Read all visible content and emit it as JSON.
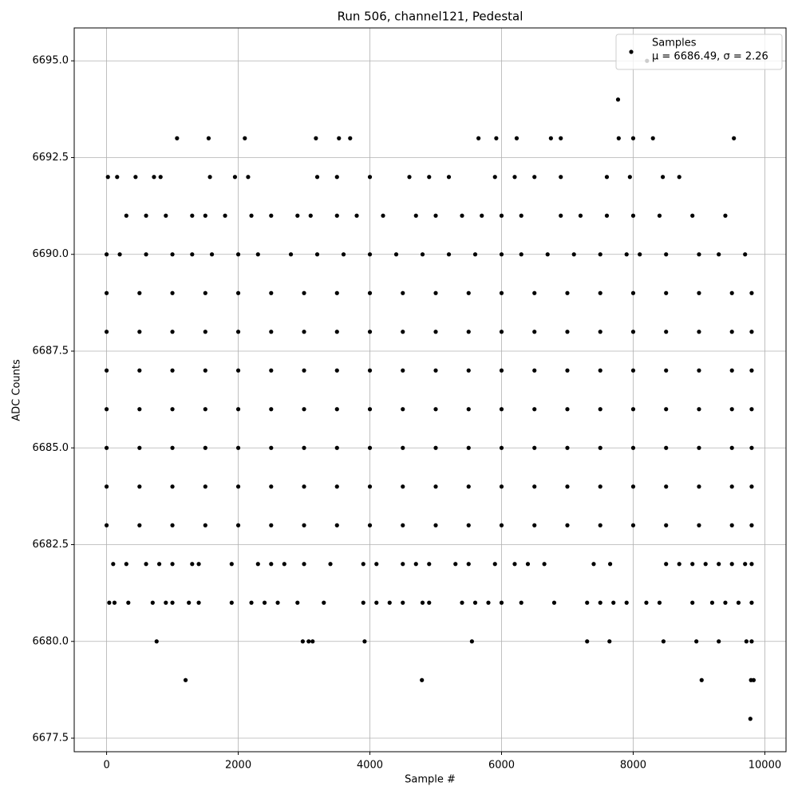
{
  "chart_data": {
    "type": "scatter",
    "title": "Run 506, channel121, Pedestal",
    "x_label": "Sample #",
    "y_label": "ADC Counts",
    "legend_position": "upper right",
    "grid": true,
    "xlim": [
      -492,
      10322
    ],
    "ylim": [
      6677.15,
      6695.85
    ],
    "xticks": [
      0,
      2000,
      4000,
      6000,
      8000,
      10000
    ],
    "yticks": [
      6677.5,
      {
        "value": 6680,
        "label": "6680.0"
      },
      6682.5,
      {
        "value": 6685,
        "label": "6685.0"
      },
      6687.5,
      {
        "value": 6690,
        "label": "6690.0"
      },
      6692.5,
      {
        "value": 6695,
        "label": "6695.0"
      }
    ],
    "series": [
      {
        "name": "Samples",
        "stats_label": "μ = 6686.49, σ = 2.26",
        "color": "#000000",
        "x": [
          0,
          500,
          1000,
          1500,
          2000,
          2500,
          3000,
          3500,
          4000,
          4500,
          5000,
          5500,
          6000,
          6500,
          7000,
          7500,
          8000,
          8500,
          9000,
          9500,
          9800,
          0,
          500,
          1000,
          1500,
          2000,
          2500,
          3000,
          3500,
          4000,
          4500,
          5000,
          5500,
          6000,
          6500,
          7000,
          7500,
          8000,
          8500,
          9000,
          9500,
          9800,
          0,
          500,
          1000,
          1500,
          2000,
          2500,
          3000,
          3500,
          4000,
          4500,
          5000,
          5500,
          6000,
          6500,
          7000,
          7500,
          8000,
          8500,
          9000,
          9500,
          9800,
          0,
          500,
          1000,
          1500,
          2000,
          2500,
          3000,
          3500,
          4000,
          4500,
          5000,
          5500,
          6000,
          6500,
          7000,
          7500,
          8000,
          8500,
          9000,
          9500,
          9800,
          0,
          500,
          1000,
          1500,
          2000,
          2500,
          3000,
          3500,
          4000,
          4500,
          5000,
          5500,
          6000,
          6500,
          7000,
          7500,
          8000,
          8500,
          9000,
          9500,
          9800,
          0,
          500,
          1000,
          1500,
          2000,
          2500,
          3000,
          3500,
          4000,
          4500,
          5000,
          5500,
          6000,
          6500,
          7000,
          7500,
          8000,
          8500,
          9000,
          9500,
          9800,
          0,
          500,
          1000,
          1500,
          2000,
          2500,
          3000,
          3500,
          4000,
          4500,
          5000,
          5500,
          6000,
          6500,
          7000,
          7500,
          8000,
          8500,
          9000,
          9500,
          9800,
          0,
          200,
          600,
          1000,
          1300,
          1600,
          2000,
          2300,
          2800,
          3200,
          3600,
          4000,
          4400,
          4800,
          5200,
          5600,
          6000,
          6300,
          6700,
          7100,
          7500,
          7900,
          8100,
          8500,
          9000,
          9300,
          9700,
          300,
          600,
          900,
          1300,
          1500,
          1800,
          2200,
          2500,
          2900,
          3100,
          3500,
          3800,
          4200,
          4700,
          5000,
          5400,
          5700,
          6000,
          6300,
          6900,
          7200,
          7600,
          8000,
          8400,
          8900,
          9400,
          20,
          160,
          440,
          720,
          820,
          1570,
          1950,
          2150,
          3200,
          3500,
          4000,
          4600,
          4900,
          5200,
          5900,
          6200,
          6500,
          6900,
          7600,
          7950,
          8450,
          8700,
          1070,
          1550,
          2100,
          3180,
          3530,
          3700,
          5650,
          5920,
          6230,
          6750,
          6900,
          7780,
          8000,
          8300,
          9530,
          7770,
          8210,
          100,
          300,
          600,
          800,
          1000,
          1300,
          1400,
          1900,
          2300,
          2500,
          2700,
          3000,
          3400,
          3900,
          4100,
          4500,
          4700,
          4900,
          5300,
          5500,
          5900,
          6200,
          6400,
          6650,
          7400,
          7650,
          8500,
          8700,
          8900,
          9100,
          9300,
          9500,
          9700,
          9800,
          40,
          120,
          330,
          700,
          900,
          1000,
          1250,
          1400,
          1900,
          2200,
          2400,
          2600,
          2900,
          3300,
          3900,
          4100,
          4300,
          4500,
          4800,
          4900,
          5400,
          5600,
          5800,
          6000,
          6300,
          6800,
          7300,
          7500,
          7700,
          7900,
          8200,
          8400,
          8900,
          9200,
          9400,
          9600,
          9800,
          760,
          2980,
          3070,
          3130,
          3920,
          5550,
          7300,
          7640,
          8460,
          8960,
          9300,
          9720,
          9800,
          1200,
          4790,
          9040,
          9790,
          9830,
          9780
        ],
        "y": [
          6683,
          6683,
          6683,
          6683,
          6683,
          6683,
          6683,
          6683,
          6683,
          6683,
          6683,
          6683,
          6683,
          6683,
          6683,
          6683,
          6683,
          6683,
          6683,
          6683,
          6683,
          6684,
          6684,
          6684,
          6684,
          6684,
          6684,
          6684,
          6684,
          6684,
          6684,
          6684,
          6684,
          6684,
          6684,
          6684,
          6684,
          6684,
          6684,
          6684,
          6684,
          6684,
          6685,
          6685,
          6685,
          6685,
          6685,
          6685,
          6685,
          6685,
          6685,
          6685,
          6685,
          6685,
          6685,
          6685,
          6685,
          6685,
          6685,
          6685,
          6685,
          6685,
          6685,
          6686,
          6686,
          6686,
          6686,
          6686,
          6686,
          6686,
          6686,
          6686,
          6686,
          6686,
          6686,
          6686,
          6686,
          6686,
          6686,
          6686,
          6686,
          6686,
          6686,
          6686,
          6687,
          6687,
          6687,
          6687,
          6687,
          6687,
          6687,
          6687,
          6687,
          6687,
          6687,
          6687,
          6687,
          6687,
          6687,
          6687,
          6687,
          6687,
          6687,
          6687,
          6687,
          6688,
          6688,
          6688,
          6688,
          6688,
          6688,
          6688,
          6688,
          6688,
          6688,
          6688,
          6688,
          6688,
          6688,
          6688,
          6688,
          6688,
          6688,
          6688,
          6688,
          6688,
          6689,
          6689,
          6689,
          6689,
          6689,
          6689,
          6689,
          6689,
          6689,
          6689,
          6689,
          6689,
          6689,
          6689,
          6689,
          6689,
          6689,
          6689,
          6689,
          6689,
          6689,
          6690,
          6690,
          6690,
          6690,
          6690,
          6690,
          6690,
          6690,
          6690,
          6690,
          6690,
          6690,
          6690,
          6690,
          6690,
          6690,
          6690,
          6690,
          6690,
          6690,
          6690,
          6690,
          6690,
          6690,
          6690,
          6690,
          6690,
          6691,
          6691,
          6691,
          6691,
          6691,
          6691,
          6691,
          6691,
          6691,
          6691,
          6691,
          6691,
          6691,
          6691,
          6691,
          6691,
          6691,
          6691,
          6691,
          6691,
          6691,
          6691,
          6691,
          6691,
          6691,
          6691,
          6692,
          6692,
          6692,
          6692,
          6692,
          6692,
          6692,
          6692,
          6692,
          6692,
          6692,
          6692,
          6692,
          6692,
          6692,
          6692,
          6692,
          6692,
          6692,
          6692,
          6692,
          6692,
          6693,
          6693,
          6693,
          6693,
          6693,
          6693,
          6693,
          6693,
          6693,
          6693,
          6693,
          6693,
          6693,
          6693,
          6693,
          6694,
          6695,
          6682,
          6682,
          6682,
          6682,
          6682,
          6682,
          6682,
          6682,
          6682,
          6682,
          6682,
          6682,
          6682,
          6682,
          6682,
          6682,
          6682,
          6682,
          6682,
          6682,
          6682,
          6682,
          6682,
          6682,
          6682,
          6682,
          6682,
          6682,
          6682,
          6682,
          6682,
          6682,
          6682,
          6682,
          6681,
          6681,
          6681,
          6681,
          6681,
          6681,
          6681,
          6681,
          6681,
          6681,
          6681,
          6681,
          6681,
          6681,
          6681,
          6681,
          6681,
          6681,
          6681,
          6681,
          6681,
          6681,
          6681,
          6681,
          6681,
          6681,
          6681,
          6681,
          6681,
          6681,
          6681,
          6681,
          6681,
          6681,
          6681,
          6681,
          6681,
          6680,
          6680,
          6680,
          6680,
          6680,
          6680,
          6680,
          6680,
          6680,
          6680,
          6680,
          6680,
          6680,
          6679,
          6679,
          6679,
          6679,
          6679,
          6678
        ]
      }
    ]
  }
}
